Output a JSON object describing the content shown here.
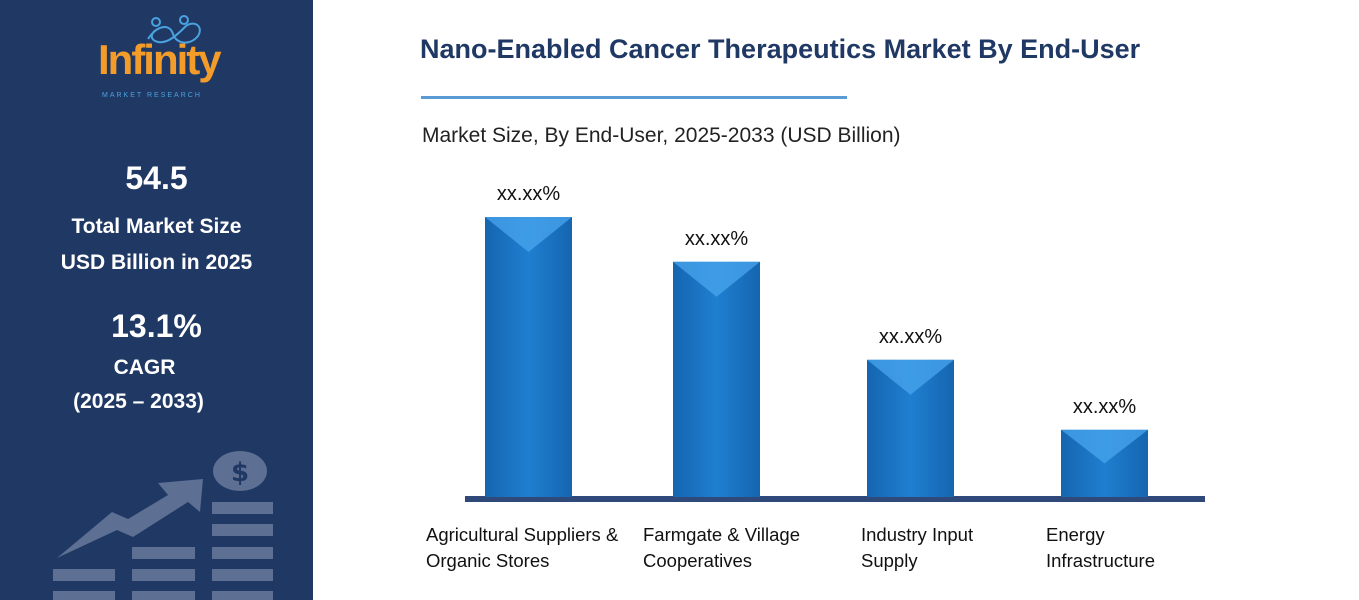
{
  "sidebar": {
    "logo": {
      "word": "Infinity",
      "sub": "MARKET RESEARCH"
    },
    "market_size_value": "54.5",
    "market_size_label_1": "Total Market Size",
    "market_size_label_2": "USD Billion in 2025",
    "cagr_value": "13.1%",
    "cagr_label": "CAGR",
    "cagr_period": "(2025 – 2033)",
    "decor_icon": "growth-chart-dollar-icon"
  },
  "header": {
    "title": "Nano-Enabled Cancer Therapeutics Market By End-User",
    "subtitle": "Market Size, By End-User, 2025-2033 (USD Billion)"
  },
  "colors": {
    "sidebar": "#203864",
    "bar": "#1f78c8",
    "axis": "#2f4a7a",
    "accent": "#5b9bd5",
    "logo": "#f39c2a"
  },
  "chart_data": {
    "type": "bar",
    "categories": [
      [
        "Agricultural Suppliers &",
        "Organic Stores"
      ],
      [
        "Farmgate & Village",
        "Cooperatives"
      ],
      [
        "Industry Input",
        "Supply"
      ],
      [
        "Energy",
        "Infrastructure"
      ]
    ],
    "values_relative": [
      100,
      84,
      49,
      24
    ],
    "data_labels": [
      "xx.xx%",
      "xx.xx%",
      "xx.xx%",
      "xx.xx%"
    ],
    "grid": false,
    "legend": "none"
  }
}
